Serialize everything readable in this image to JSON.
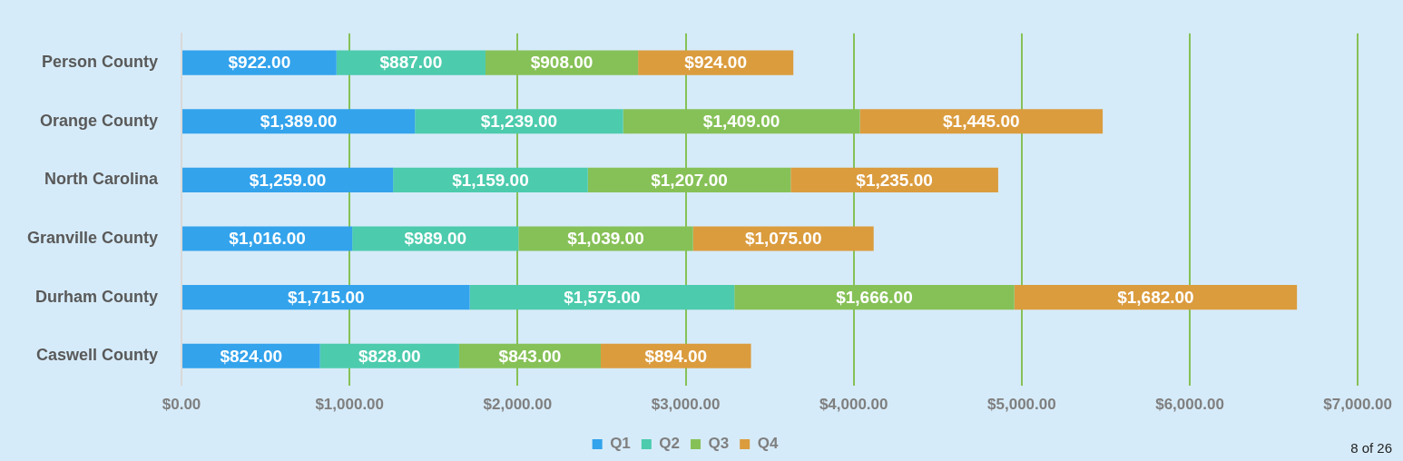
{
  "chart_data": {
    "type": "bar",
    "orientation": "horizontal",
    "stacked": true,
    "categories": [
      "Person County",
      "Orange County",
      "North Carolina",
      "Granville County",
      "Durham County",
      "Caswell County"
    ],
    "series": [
      {
        "name": "Q1",
        "color": "#33a3ec",
        "values": [
          922,
          1389,
          1259,
          1016,
          1715,
          824
        ],
        "value_labels": [
          "$922.00",
          "$1,389.00",
          "$1,259.00",
          "$1,016.00",
          "$1,715.00",
          "$824.00"
        ]
      },
      {
        "name": "Q2",
        "color": "#4ccbad",
        "values": [
          887,
          1239,
          1159,
          989,
          1575,
          828
        ],
        "value_labels": [
          "$887.00",
          "$1,239.00",
          "$1,159.00",
          "$989.00",
          "$1,575.00",
          "$828.00"
        ]
      },
      {
        "name": "Q3",
        "color": "#86c157",
        "values": [
          908,
          1409,
          1207,
          1039,
          1666,
          843
        ],
        "value_labels": [
          "$908.00",
          "$1,409.00",
          "$1,207.00",
          "$1,039.00",
          "$1,666.00",
          "$843.00"
        ]
      },
      {
        "name": "Q4",
        "color": "#db9c3e",
        "values": [
          924,
          1445,
          1235,
          1075,
          1682,
          894
        ],
        "value_labels": [
          "$924.00",
          "$1,445.00",
          "$1,235.00",
          "$1,075.00",
          "$1,682.00",
          "$894.00"
        ]
      }
    ],
    "xlim": [
      0,
      7000
    ],
    "xticks": [
      {
        "value": 0,
        "label": "$0.00"
      },
      {
        "value": 1000,
        "label": "$1,000.00"
      },
      {
        "value": 2000,
        "label": "$2,000.00"
      },
      {
        "value": 3000,
        "label": "$3,000.00"
      },
      {
        "value": 4000,
        "label": "$4,000.00"
      },
      {
        "value": 5000,
        "label": "$5,000.00"
      },
      {
        "value": 6000,
        "label": "$6,000.00"
      },
      {
        "value": 7000,
        "label": "$7,000.00"
      }
    ],
    "grid": "x",
    "legend": "bottom",
    "annotations": [
      "8 of 26"
    ]
  }
}
